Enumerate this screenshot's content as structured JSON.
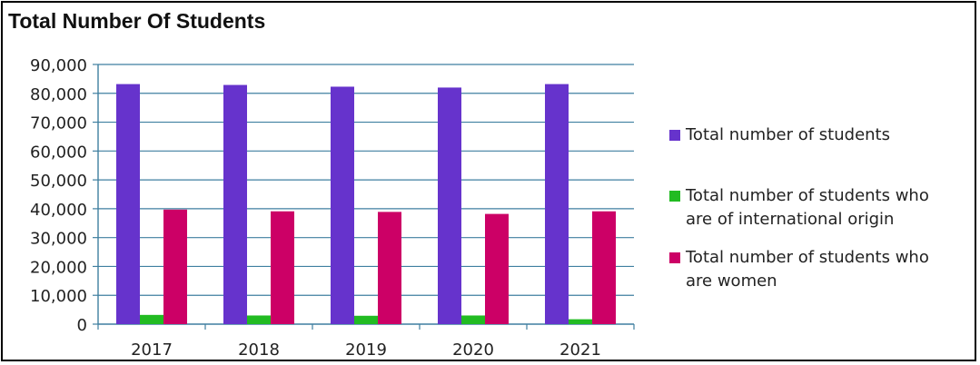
{
  "page_title": "Total Number Of Students",
  "chart_data": {
    "type": "bar",
    "title": "Total Number Of Students",
    "xlabel": "",
    "ylabel": "",
    "categories": [
      "2017",
      "2018",
      "2019",
      "2020",
      "2021"
    ],
    "ylim": [
      0,
      90000
    ],
    "yticks": [
      "0",
      "10,000",
      "20,000",
      "30,000",
      "40,000",
      "50,000",
      "60,000",
      "70,000",
      "80,000",
      "90,000"
    ],
    "grid": true,
    "legend_position": "right",
    "series": [
      {
        "name": "Total number of students",
        "color": "#6633cc",
        "values": [
          83200,
          82900,
          82300,
          82000,
          83200
        ]
      },
      {
        "name": "Total number of students who are of international origin",
        "color": "#22bb22",
        "values": [
          3200,
          3000,
          2900,
          3000,
          1700
        ]
      },
      {
        "name": "Total number of students who are women",
        "color": "#cc0066",
        "values": [
          39700,
          39100,
          38900,
          38200,
          39100
        ]
      }
    ]
  }
}
